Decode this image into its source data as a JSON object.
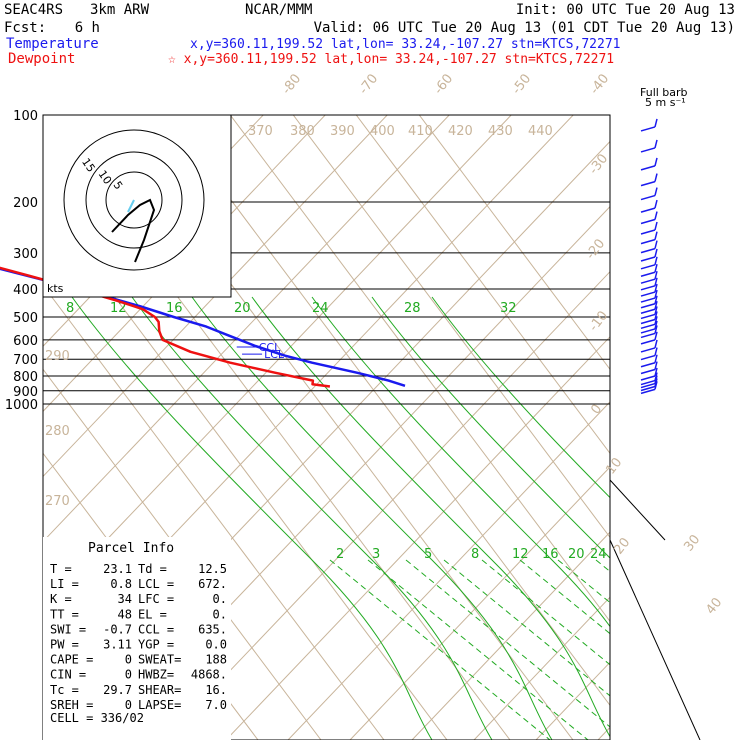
{
  "header": {
    "project": "SEAC4RS",
    "model": "3km ARW",
    "org": "NCAR/MMM",
    "init": "Init: 00 UTC Tue 20 Aug 13",
    "fcst_label": "Fcst:",
    "fcst_value": "6 h",
    "valid": "Valid: 06 UTC Tue 20 Aug 13 (01 CDT Tue 20 Aug 13)",
    "temp_label": "Temperature",
    "temp_info": "x,y=360.11,199.52   lat,lon= 33.24,-107.27   stn=KTCS,72271",
    "dew_label": "Dewpoint",
    "dew_info": "☆ x,y=360.11,199.52   lat,lon= 33.24,-107.27   stn=KTCS,72271",
    "barb_note_1": "Full barb",
    "barb_note_2": "5 m s⁻¹"
  },
  "colors": {
    "temperature": "#1a1aee",
    "dewpoint": "#ee1111",
    "isotherm": "#c8b49a",
    "mixing_ratio": "#22aa22",
    "grid": "#000000"
  },
  "chart_data": {
    "type": "line",
    "title": "",
    "xlabel": "",
    "ylabel": "",
    "pressure_ticks": [
      100,
      200,
      300,
      400,
      500,
      600,
      700,
      800,
      900,
      1000
    ],
    "isotherm_labels": [
      "-80",
      "-70",
      "-60",
      "-50",
      "-40",
      "-30",
      "-20",
      "-10",
      "0",
      "10",
      "20",
      "30",
      "40"
    ],
    "theta_labels": [
      "370",
      "380",
      "390",
      "400",
      "410",
      "420",
      "430",
      "440",
      "290",
      "280",
      "270"
    ],
    "upper_mixing_labels": [
      "8",
      "12",
      "16",
      "20",
      "24",
      "28",
      "32"
    ],
    "lower_mixing_labels": [
      "2",
      "3",
      "5",
      "8",
      "12",
      "16",
      "20",
      "24"
    ],
    "series": [
      {
        "name": "Temperature",
        "color": "#1a1aee",
        "points": [
          [
            865,
            25.5
          ],
          [
            830,
            23.5
          ],
          [
            780,
            19.5
          ],
          [
            720,
            13.5
          ],
          [
            680,
            10.0
          ],
          [
            630,
            6.5
          ],
          [
            580,
            3.5
          ],
          [
            540,
            1.0
          ],
          [
            500,
            -3.0
          ],
          [
            460,
            -7.0
          ],
          [
            420,
            -12.0
          ],
          [
            380,
            -18.0
          ],
          [
            340,
            -25.0
          ],
          [
            300,
            -32.0
          ],
          [
            260,
            -40.0
          ],
          [
            220,
            -48.5
          ],
          [
            195,
            -54.5
          ],
          [
            165,
            -60.0
          ],
          [
            150,
            -59.5
          ],
          [
            135,
            -62.5
          ],
          [
            115,
            -66.0
          ],
          [
            100,
            -69.0
          ]
        ]
      },
      {
        "name": "Dewpoint",
        "color": "#ee1111",
        "points": [
          [
            870,
            13.5
          ],
          [
            855,
            11.0
          ],
          [
            830,
            11.5
          ],
          [
            780,
            6.5
          ],
          [
            720,
            0.5
          ],
          [
            660,
            -4.5
          ],
          [
            600,
            -7.5
          ],
          [
            560,
            -7.0
          ],
          [
            520,
            -6.0
          ],
          [
            500,
            -6.0
          ],
          [
            470,
            -7.0
          ],
          [
            440,
            -10.0
          ],
          [
            400,
            -15.0
          ],
          [
            360,
            -21.0
          ],
          [
            320,
            -28.0
          ],
          [
            280,
            -36.0
          ],
          [
            240,
            -44.0
          ],
          [
            205,
            -51.5
          ],
          [
            175,
            -60.0
          ],
          [
            160,
            -67.0
          ],
          [
            150,
            -72.0
          ],
          [
            140,
            -77.0
          ],
          [
            128,
            -85.0
          ],
          [
            115,
            -90.0
          ],
          [
            100,
            -90.0
          ]
        ]
      }
    ],
    "markers": [
      {
        "label": "CCL",
        "pressure": 635
      },
      {
        "label": "LCL",
        "pressure": 672
      }
    ],
    "wind_barb_levels": [
      110,
      130,
      150,
      170,
      190,
      210,
      230,
      250,
      270,
      290,
      310,
      330,
      350,
      370,
      390,
      410,
      430,
      450,
      470,
      490,
      510,
      530,
      550,
      570,
      600,
      640,
      680,
      720,
      760,
      800,
      830,
      850,
      870,
      890
    ],
    "hodograph_label": "kts",
    "hodograph_rings": [
      "15",
      "10",
      "5"
    ]
  },
  "parcel": {
    "title": "Parcel Info",
    "rows": [
      [
        "T  =",
        "23.1",
        "Td =",
        "12.5"
      ],
      [
        "LI =",
        "0.8",
        "LCL =",
        "672."
      ],
      [
        "K  =",
        "34",
        "LFC =",
        "0."
      ],
      [
        "TT =",
        "48",
        "EL  =",
        "0."
      ],
      [
        "SWI =",
        "-0.7",
        "CCL =",
        "635."
      ],
      [
        "PW =",
        "3.11",
        "YGP =",
        "0.0"
      ],
      [
        "CAPE =",
        "0",
        "SWEAT=",
        "188"
      ],
      [
        "CIN =",
        "0",
        "HWBZ=",
        "4868."
      ],
      [
        "Tc =",
        "29.7",
        "SHEAR=",
        "16."
      ],
      [
        "SREH =",
        "0",
        "LAPSE=",
        "7.0"
      ]
    ],
    "cell": "CELL = 336/02"
  }
}
